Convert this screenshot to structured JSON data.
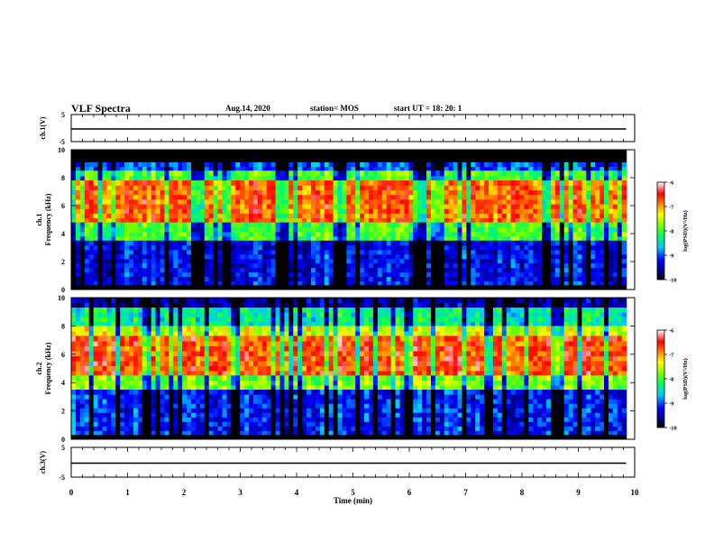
{
  "header": {
    "title": "VLF Spectra",
    "date": "Aug.14, 2020",
    "station": "station= MOS",
    "start": "start  UT =   18: 20: 1"
  },
  "chart_data": [
    {
      "type": "line",
      "panel": "ch1-voltage",
      "ylabel": "ch.1(V)",
      "ylim": [
        -5,
        5
      ],
      "yticks": [
        "5",
        "-5"
      ],
      "xlim": [
        0,
        10
      ],
      "series": [
        {
          "x": [
            0,
            9.85
          ],
          "values": [
            0,
            0
          ]
        }
      ],
      "color": "#000000"
    },
    {
      "type": "heatmap",
      "panel": "ch1-spectrogram",
      "ylabel": "ch.1\nFrequency (kHz)",
      "ylim": [
        0,
        10
      ],
      "yticks": [
        "0",
        "2",
        "4",
        "6",
        "8",
        "10"
      ],
      "xlim": [
        0,
        10
      ],
      "data_xmax": 9.85,
      "colorbar": {
        "label": "log(PSD)(V²/Hz)",
        "range": [
          -10,
          -6
        ],
        "ticks": [
          "-6",
          "-7",
          "-8",
          "-9",
          "-10"
        ]
      },
      "bands": [
        {
          "from": 9.1,
          "to": 10,
          "level": -10.5
        },
        {
          "from": 8.5,
          "to": 9.1,
          "level": -9.0
        },
        {
          "from": 7.8,
          "to": 8.5,
          "level": -8.0
        },
        {
          "from": 4.8,
          "to": 7.8,
          "level": -6.8
        },
        {
          "from": 3.5,
          "to": 4.8,
          "level": -8.0
        },
        {
          "from": 0.3,
          "to": 3.5,
          "level": -9.3
        },
        {
          "from": 0.0,
          "to": 0.3,
          "level": -10.5
        }
      ]
    },
    {
      "type": "heatmap",
      "panel": "ch2-spectrogram",
      "ylabel": "ch.2\nFrequency (kHz)",
      "ylim": [
        0,
        10
      ],
      "yticks": [
        "0",
        "2",
        "4",
        "6",
        "8",
        "10"
      ],
      "xlim": [
        0,
        10
      ],
      "data_xmax": 9.85,
      "colorbar": {
        "label": "log(PSD)(V²/Hz)",
        "range": [
          -10,
          -6
        ],
        "ticks": [
          "-6",
          "-7",
          "-8",
          "-9",
          "-10"
        ]
      },
      "bands": [
        {
          "from": 9.3,
          "to": 10,
          "level": -9.6
        },
        {
          "from": 8.0,
          "to": 9.3,
          "level": -8.4
        },
        {
          "from": 7.3,
          "to": 8.0,
          "level": -7.5
        },
        {
          "from": 4.5,
          "to": 7.3,
          "level": -6.7
        },
        {
          "from": 3.5,
          "to": 4.5,
          "level": -7.8
        },
        {
          "from": 0.3,
          "to": 3.5,
          "level": -9.2
        },
        {
          "from": 0.0,
          "to": 0.3,
          "level": -10.5
        }
      ]
    },
    {
      "type": "line",
      "panel": "ch3-voltage",
      "ylabel": "ch.3(V)",
      "ylim": [
        -5,
        5
      ],
      "yticks": [
        "5",
        "-5"
      ],
      "xlim": [
        0,
        10
      ],
      "xlabel": "Time (min)",
      "xticks": [
        "0",
        "1",
        "2",
        "3",
        "4",
        "5",
        "6",
        "7",
        "8",
        "9",
        "10"
      ],
      "series": [
        {
          "x": [
            0,
            9.85
          ],
          "values": [
            0,
            0
          ]
        }
      ],
      "color": "#000000"
    }
  ]
}
